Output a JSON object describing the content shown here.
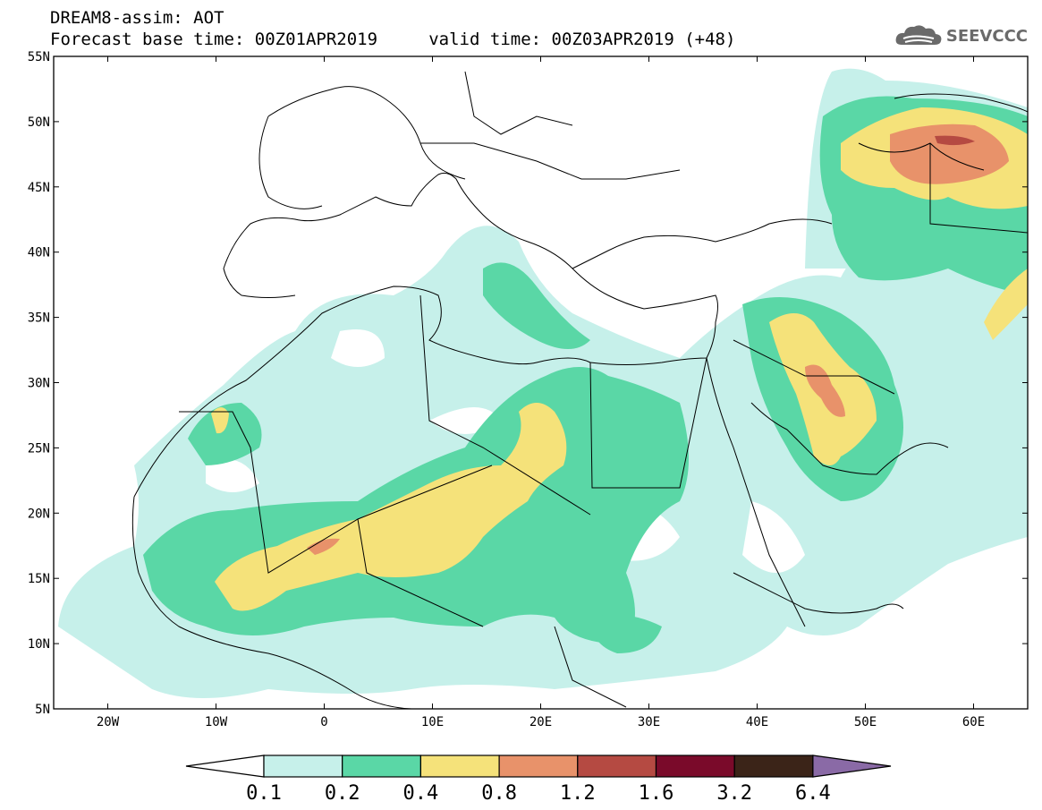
{
  "header": {
    "line1": "DREAM8-assim: AOT",
    "line2": "Forecast base time: 00Z01APR2019     valid time: 00Z03APR2019 (+48)"
  },
  "logo": {
    "text": "SEEVCCC",
    "icon": "cloud-icon"
  },
  "map": {
    "lon_range": [
      -25,
      65
    ],
    "lat_range": [
      5,
      55
    ],
    "lat_ticks": [
      {
        "value": 55,
        "label": "55N"
      },
      {
        "value": 50,
        "label": "50N"
      },
      {
        "value": 45,
        "label": "45N"
      },
      {
        "value": 40,
        "label": "40N"
      },
      {
        "value": 35,
        "label": "35N"
      },
      {
        "value": 30,
        "label": "30N"
      },
      {
        "value": 25,
        "label": "25N"
      },
      {
        "value": 20,
        "label": "20N"
      },
      {
        "value": 15,
        "label": "15N"
      },
      {
        "value": 10,
        "label": "10N"
      },
      {
        "value": 5,
        "label": "5N"
      }
    ],
    "lon_ticks": [
      {
        "value": -20,
        "label": "20W"
      },
      {
        "value": -10,
        "label": "10W"
      },
      {
        "value": 0,
        "label": "0"
      },
      {
        "value": 10,
        "label": "10E"
      },
      {
        "value": 20,
        "label": "20E"
      },
      {
        "value": 30,
        "label": "30E"
      },
      {
        "value": 40,
        "label": "40E"
      },
      {
        "value": 50,
        "label": "50E"
      },
      {
        "value": 60,
        "label": "60E"
      }
    ]
  },
  "colorbar": {
    "colors": [
      "#ffffff",
      "#c6f0ea",
      "#5ad7a6",
      "#f5e27a",
      "#e8926a",
      "#b54a42",
      "#7a0a2a",
      "#3b2418",
      "#8a6aa6"
    ],
    "labels": [
      "0.1",
      "0.2",
      "0.4",
      "0.8",
      "1.2",
      "1.6",
      "3.2",
      "6.4"
    ]
  }
}
